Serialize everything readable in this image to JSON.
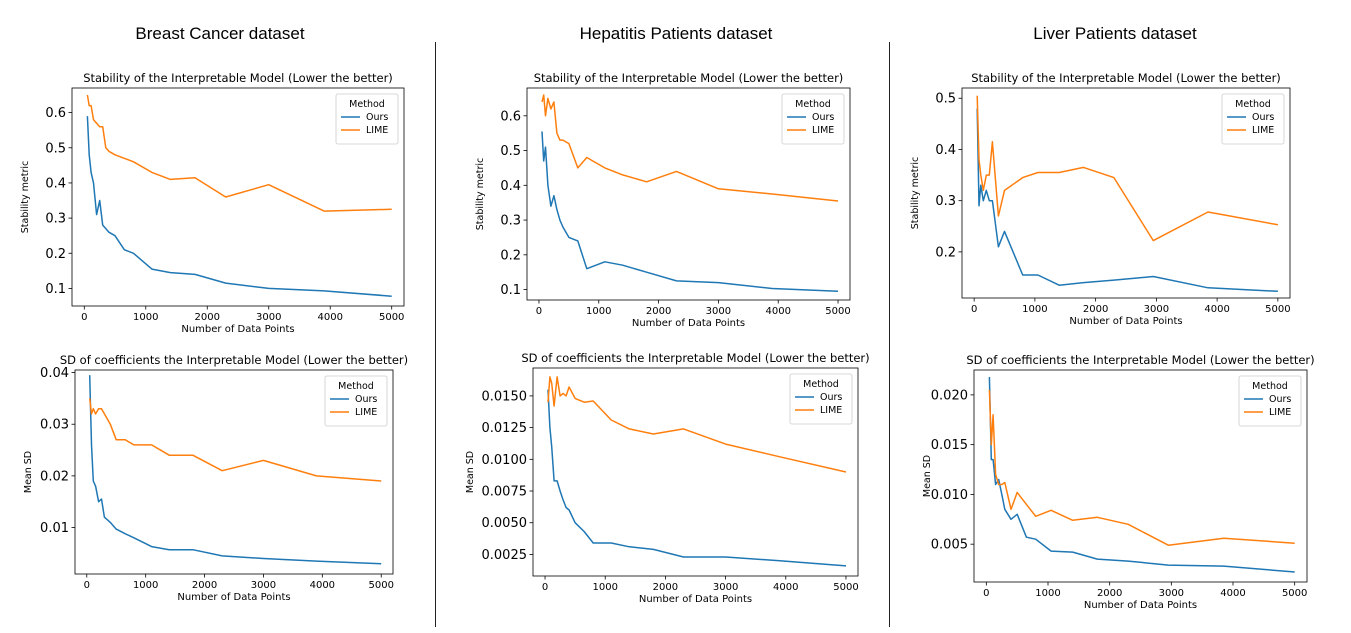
{
  "columns": [
    {
      "title": "Breast Cancer dataset"
    },
    {
      "title": "Hepatitis Patients dataset"
    },
    {
      "title": "Liver Patients dataset"
    }
  ],
  "chart_data": [
    {
      "id": "bc-stability",
      "type": "line",
      "title": "Stability of the Interpretable Model  (Lower the better)",
      "xlabel": "Number of Data Points",
      "ylabel": "Stability metric",
      "xlim": [
        -200,
        5200
      ],
      "ylim": [
        0.05,
        0.67
      ],
      "xticks": [
        0,
        1000,
        2000,
        3000,
        4000,
        5000
      ],
      "yticks": [
        0.1,
        0.2,
        0.3,
        0.4,
        0.5,
        0.6
      ],
      "ytick_labels": [
        "0.1",
        "0.2",
        "0.3",
        "0.4",
        "0.5",
        "0.6"
      ],
      "legend": {
        "title": "Method",
        "position": "upper right"
      },
      "series": [
        {
          "name": "Ours",
          "color": "#1f77b4",
          "x": [
            50,
            80,
            110,
            150,
            200,
            250,
            300,
            350,
            400,
            500,
            650,
            800,
            1100,
            1400,
            1800,
            2300,
            3000,
            3900,
            5000
          ],
          "y": [
            0.59,
            0.48,
            0.43,
            0.4,
            0.31,
            0.35,
            0.28,
            0.27,
            0.26,
            0.25,
            0.21,
            0.2,
            0.155,
            0.145,
            0.14,
            0.115,
            0.1,
            0.093,
            0.078
          ]
        },
        {
          "name": "LIME",
          "color": "#ff7f0e",
          "x": [
            50,
            80,
            110,
            150,
            200,
            250,
            300,
            350,
            400,
            500,
            650,
            800,
            1100,
            1400,
            1800,
            2300,
            3000,
            3900,
            5000
          ],
          "y": [
            0.65,
            0.62,
            0.62,
            0.58,
            0.57,
            0.56,
            0.56,
            0.5,
            0.49,
            0.48,
            0.47,
            0.46,
            0.43,
            0.41,
            0.415,
            0.36,
            0.395,
            0.32,
            0.325
          ]
        }
      ]
    },
    {
      "id": "hp-stability",
      "type": "line",
      "title": "Stability of the Interpretable Model  (Lower the better)",
      "xlabel": "Number of Data Points",
      "ylabel": "Stability metric",
      "xlim": [
        -200,
        5200
      ],
      "ylim": [
        0.07,
        0.68
      ],
      "xticks": [
        0,
        1000,
        2000,
        3000,
        4000,
        5000
      ],
      "yticks": [
        0.1,
        0.2,
        0.3,
        0.4,
        0.5,
        0.6
      ],
      "ytick_labels": [
        "0.1",
        "0.2",
        "0.3",
        "0.4",
        "0.5",
        "0.6"
      ],
      "legend": {
        "title": "Method",
        "position": "upper right"
      },
      "series": [
        {
          "name": "Ours",
          "color": "#1f77b4",
          "x": [
            50,
            80,
            110,
            150,
            200,
            250,
            300,
            350,
            400,
            500,
            650,
            800,
            1100,
            1400,
            1800,
            2300,
            3000,
            3900,
            5000
          ],
          "y": [
            0.555,
            0.47,
            0.51,
            0.4,
            0.34,
            0.37,
            0.33,
            0.3,
            0.28,
            0.25,
            0.24,
            0.16,
            0.18,
            0.17,
            0.15,
            0.125,
            0.12,
            0.103,
            0.095
          ]
        },
        {
          "name": "LIME",
          "color": "#ff7f0e",
          "x": [
            50,
            80,
            110,
            150,
            200,
            250,
            300,
            350,
            400,
            500,
            650,
            800,
            1100,
            1400,
            1800,
            2300,
            3000,
            3900,
            5000
          ],
          "y": [
            0.64,
            0.66,
            0.6,
            0.65,
            0.62,
            0.64,
            0.55,
            0.53,
            0.53,
            0.52,
            0.45,
            0.48,
            0.45,
            0.43,
            0.41,
            0.44,
            0.39,
            0.375,
            0.355
          ]
        }
      ]
    },
    {
      "id": "lp-stability",
      "type": "line",
      "title": "Stability of the Interpretable Model  (Lower the better)",
      "xlabel": "Number of Data Points",
      "ylabel": "Stability metric",
      "xlim": [
        -200,
        5200
      ],
      "ylim": [
        0.11,
        0.52
      ],
      "xticks": [
        0,
        1000,
        2000,
        3000,
        4000,
        5000
      ],
      "yticks": [
        0.2,
        0.3,
        0.4,
        0.5
      ],
      "ytick_labels": [
        "0.2",
        "0.3",
        "0.4",
        "0.5"
      ],
      "legend": {
        "title": "Method",
        "position": "upper right"
      },
      "series": [
        {
          "name": "Ours",
          "color": "#1f77b4",
          "x": [
            50,
            80,
            110,
            150,
            200,
            250,
            300,
            400,
            500,
            800,
            1050,
            1400,
            1800,
            2300,
            2950,
            3850,
            5000
          ],
          "y": [
            0.48,
            0.29,
            0.33,
            0.3,
            0.32,
            0.3,
            0.3,
            0.21,
            0.24,
            0.155,
            0.155,
            0.135,
            0.14,
            0.145,
            0.152,
            0.13,
            0.123
          ]
        },
        {
          "name": "LIME",
          "color": "#ff7f0e",
          "x": [
            50,
            80,
            110,
            150,
            200,
            250,
            300,
            400,
            500,
            800,
            1050,
            1400,
            1800,
            2300,
            2950,
            3850,
            5000
          ],
          "y": [
            0.505,
            0.38,
            0.35,
            0.32,
            0.35,
            0.35,
            0.415,
            0.27,
            0.32,
            0.345,
            0.355,
            0.355,
            0.365,
            0.345,
            0.222,
            0.278,
            0.253
          ]
        }
      ]
    },
    {
      "id": "bc-sd",
      "type": "line",
      "title": "SD of coefficients the Interpretable Model  (Lower the better)",
      "xlabel": "Number of Data Points",
      "ylabel": "Mean SD",
      "xlim": [
        -200,
        5200
      ],
      "ylim": [
        0.001,
        0.0405
      ],
      "xticks": [
        0,
        1000,
        2000,
        3000,
        4000,
        5000
      ],
      "yticks": [
        0.01,
        0.02,
        0.03,
        0.04
      ],
      "ytick_labels": [
        "0.01",
        "0.02",
        "0.03",
        "0.04"
      ],
      "legend": {
        "title": "Method",
        "position": "upper right"
      },
      "series": [
        {
          "name": "Ours",
          "color": "#1f77b4",
          "x": [
            50,
            80,
            110,
            150,
            200,
            250,
            300,
            350,
            400,
            500,
            650,
            800,
            1100,
            1400,
            1800,
            2300,
            3000,
            3900,
            5000
          ],
          "y": [
            0.0395,
            0.026,
            0.019,
            0.018,
            0.015,
            0.0155,
            0.012,
            0.0115,
            0.011,
            0.0097,
            0.0088,
            0.008,
            0.0063,
            0.0057,
            0.0057,
            0.0045,
            0.004,
            0.0035,
            0.003
          ]
        },
        {
          "name": "LIME",
          "color": "#ff7f0e",
          "x": [
            50,
            80,
            110,
            150,
            200,
            250,
            300,
            350,
            400,
            500,
            650,
            800,
            1100,
            1400,
            1800,
            2300,
            3000,
            3900,
            5000
          ],
          "y": [
            0.035,
            0.032,
            0.033,
            0.032,
            0.033,
            0.033,
            0.032,
            0.031,
            0.03,
            0.027,
            0.027,
            0.026,
            0.026,
            0.024,
            0.024,
            0.021,
            0.023,
            0.02,
            0.019
          ]
        }
      ]
    },
    {
      "id": "hp-sd",
      "type": "line",
      "title": "SD of coefficients the Interpretable Model  (Lower the better)",
      "xlabel": "Number of Data Points",
      "ylabel": "Mean SD",
      "xlim": [
        -200,
        5200
      ],
      "ylim": [
        0.0008,
        0.0172
      ],
      "xticks": [
        0,
        1000,
        2000,
        3000,
        4000,
        5000
      ],
      "yticks": [
        0.0025,
        0.005,
        0.0075,
        0.01,
        0.0125,
        0.015
      ],
      "ytick_labels": [
        "0.0025",
        "0.0050",
        "0.0075",
        "0.0100",
        "0.0125",
        "0.0150"
      ],
      "legend": {
        "title": "Method",
        "position": "upper right"
      },
      "series": [
        {
          "name": "Ours",
          "color": "#1f77b4",
          "x": [
            50,
            80,
            110,
            150,
            200,
            250,
            300,
            350,
            400,
            500,
            650,
            800,
            1100,
            1400,
            1800,
            2300,
            3000,
            3900,
            5000
          ],
          "y": [
            0.0155,
            0.0125,
            0.011,
            0.0083,
            0.0083,
            0.0075,
            0.0068,
            0.0062,
            0.006,
            0.005,
            0.0043,
            0.0034,
            0.0034,
            0.0031,
            0.0029,
            0.0023,
            0.0023,
            0.002,
            0.0016
          ]
        },
        {
          "name": "LIME",
          "color": "#ff7f0e",
          "x": [
            50,
            80,
            110,
            150,
            200,
            250,
            300,
            350,
            400,
            500,
            650,
            800,
            1100,
            1400,
            1800,
            2300,
            3000,
            3900,
            5000
          ],
          "y": [
            0.0145,
            0.0165,
            0.016,
            0.0142,
            0.0165,
            0.015,
            0.0152,
            0.015,
            0.0157,
            0.0148,
            0.0145,
            0.0146,
            0.0131,
            0.0124,
            0.012,
            0.0124,
            0.0112,
            0.0102,
            0.009
          ]
        }
      ]
    },
    {
      "id": "lp-sd",
      "type": "line",
      "title": "SD of coefficients the Interpretable Model  (Lower the better)",
      "xlabel": "Number of Data Points",
      "ylabel": "Mean SD",
      "xlim": [
        -200,
        5200
      ],
      "ylim": [
        0.0012,
        0.0225
      ],
      "xticks": [
        0,
        1000,
        2000,
        3000,
        4000,
        5000
      ],
      "yticks": [
        0.005,
        0.01,
        0.015,
        0.02
      ],
      "ytick_labels": [
        "0.005",
        "0.010",
        "0.015",
        "0.020"
      ],
      "legend": {
        "title": "Method",
        "position": "upper right"
      },
      "series": [
        {
          "name": "Ours",
          "color": "#1f77b4",
          "x": [
            50,
            80,
            110,
            150,
            200,
            250,
            300,
            400,
            500,
            650,
            800,
            1050,
            1400,
            1800,
            2300,
            2950,
            3850,
            5000
          ],
          "y": [
            0.0218,
            0.0135,
            0.0135,
            0.011,
            0.0115,
            0.01,
            0.0085,
            0.0075,
            0.008,
            0.0057,
            0.0055,
            0.0043,
            0.0042,
            0.0035,
            0.0033,
            0.0029,
            0.0028,
            0.0022
          ]
        },
        {
          "name": "LIME",
          "color": "#ff7f0e",
          "x": [
            50,
            80,
            110,
            150,
            200,
            250,
            300,
            400,
            500,
            650,
            800,
            1050,
            1400,
            1800,
            2300,
            2950,
            3850,
            5000
          ],
          "y": [
            0.0205,
            0.015,
            0.018,
            0.012,
            0.011,
            0.011,
            0.0112,
            0.0085,
            0.0102,
            0.009,
            0.0078,
            0.0084,
            0.0074,
            0.0077,
            0.007,
            0.0049,
            0.0056,
            0.0051
          ]
        }
      ]
    }
  ]
}
